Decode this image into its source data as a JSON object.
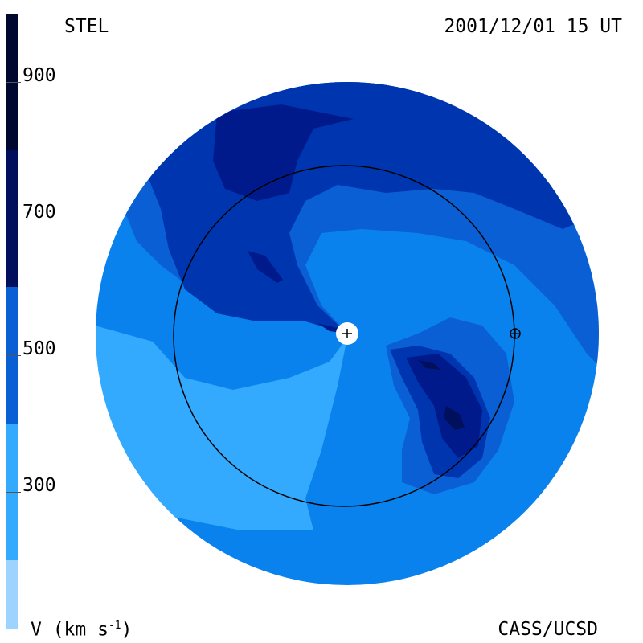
{
  "header": {
    "instrument": "STEL",
    "timestamp": "2001/12/01 15 UT"
  },
  "footer": {
    "unit_label": "V (km s",
    "unit_exponent": "-1",
    "unit_close": ")",
    "credit": "CASS/UCSD"
  },
  "colorbar": {
    "ticks": [
      "900",
      "700",
      "500",
      "300"
    ],
    "colors": [
      "#000830",
      "#00105c",
      "#001a8c",
      "#0035b0",
      "#0a5fd4",
      "#0a82ee",
      "#34aaff",
      "#9cd3ff"
    ]
  },
  "map_colors": {
    "v300_400": "#0a82ee",
    "v200_300": "#34aaff",
    "v400_500": "#0a5fd4",
    "v500_600": "#0035b0",
    "v600_700": "#001a8c",
    "v700_800": "#00105c"
  },
  "markers": {
    "sun": "+",
    "earth": "⊕"
  }
}
